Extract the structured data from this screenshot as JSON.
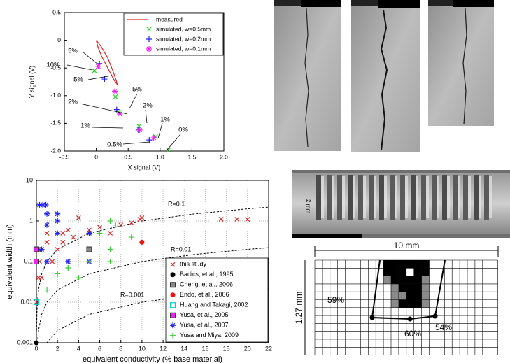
{
  "chart_data": [
    {
      "type": "scatter",
      "xlabel": "X signal (V)",
      "ylabel": "Y signal (V)",
      "xlim": [
        -0.5,
        2.0
      ],
      "ylim": [
        -2.0,
        0.5
      ],
      "xticks": [
        -0.5,
        0,
        0.5,
        {
          "value": 1,
          "label": "1.0"
        },
        1.5,
        {
          "value": 2,
          "label": "2.0"
        }
      ],
      "yticks": [
        0.5,
        0,
        -0.5,
        {
          "value": -1,
          "label": "-1.0"
        },
        -1.5,
        {
          "value": -2,
          "label": "-2.0"
        }
      ],
      "grid": false,
      "log_y": false,
      "legend": "upper right",
      "series": [
        {
          "name": "measured",
          "color": "#e02020",
          "marker": "line",
          "x": [
            0,
            0.08,
            0.18,
            0.26,
            0.31,
            0.33,
            0.28,
            0.18,
            0.08,
            0.02,
            0
          ],
          "values": [
            0,
            -0.12,
            -0.32,
            -0.55,
            -0.72,
            -0.8,
            -0.72,
            -0.5,
            -0.28,
            -0.1,
            0
          ]
        },
        {
          "name": "simulated, w=0.5mm",
          "color": "#22cc22",
          "marker": "x",
          "x": [
            -0.03,
            0.3,
            0.36,
            0.67,
            0.93,
            1.13
          ],
          "values": [
            -0.55,
            -1.02,
            -1.3,
            -1.55,
            -1.74,
            -1.98
          ]
        },
        {
          "name": "simulated, w=0.2mm",
          "color": "#2222ee",
          "marker": "+",
          "x": [
            0.05,
            0.13,
            0.32,
            0.66,
            0.83
          ],
          "values": [
            -0.42,
            -0.7,
            -1.25,
            -1.62,
            -1.8
          ]
        },
        {
          "name": "simulated, w=0.1mm",
          "color": "#ee22ee",
          "marker": "*",
          "x": [
            0.03,
            0.29,
            0.37,
            0.68,
            0.9
          ],
          "values": [
            -0.47,
            -0.92,
            -1.33,
            -1.62,
            -1.76
          ]
        }
      ],
      "annotations": [
        "5%",
        "10%",
        "5%",
        "5%",
        "2%",
        "1%",
        "2%",
        "1%",
        "0.5%",
        "0%"
      ]
    },
    {
      "type": "scatter",
      "xlabel": "equivalent conductivity (% base material)",
      "ylabel": "equivalent width (mm)",
      "xlim": [
        0,
        22
      ],
      "ylim": [
        0.001,
        10
      ],
      "xticks": [
        0,
        2,
        4,
        6,
        8,
        10,
        12,
        14,
        16,
        18,
        20,
        22
      ],
      "yticks": [
        0.001,
        0.01,
        0.1,
        1,
        10
      ],
      "grid": true,
      "log_y": true,
      "legend": "lower right",
      "series": [
        {
          "name": "this study",
          "color": "#e02020",
          "marker": "x",
          "x": [
            0,
            0.2,
            0.2,
            0.3,
            0.5,
            0.5,
            1,
            1,
            1.5,
            2,
            2.5,
            2.5,
            3,
            3.5,
            4,
            5,
            6,
            7,
            8,
            9,
            9.8,
            10,
            17.5,
            19,
            20
          ],
          "values": [
            0.01,
            0.04,
            0.2,
            0.1,
            0.2,
            0.04,
            0.3,
            0.5,
            0.1,
            0.2,
            0.5,
            0.3,
            0.6,
            0.4,
            1.2,
            0.6,
            0.7,
            0.5,
            0.8,
            0.9,
            1.1,
            1.2,
            1.1,
            1.1,
            1.1
          ]
        },
        {
          "name": "Badics, et al., 1995",
          "color": "#000000",
          "marker": "o",
          "x": [
            0
          ],
          "values": [
            0.001
          ]
        },
        {
          "name": "Cheng, et al., 2006",
          "color": "#888888",
          "marker": "s",
          "x": [
            5
          ],
          "values": [
            0.2
          ]
        },
        {
          "name": "Endo, et al., 2006",
          "color": "#ee1111",
          "marker": "o",
          "x": [
            10
          ],
          "values": [
            0.3
          ]
        },
        {
          "name": "Huang and Takagi, 2002",
          "color": "#00cccc",
          "marker": "S",
          "x": [
            0,
            0,
            0
          ],
          "values": [
            0.2,
            0.1,
            0.01
          ]
        },
        {
          "name": "Yusa, et al., 2005",
          "color": "#ee22ee",
          "marker": "s",
          "x": [
            0,
            0
          ],
          "values": [
            0.2,
            0.1
          ]
        },
        {
          "name": "Yusa, et al., 2007",
          "color": "#2222ee",
          "marker": "*",
          "x": [
            0.3,
            0.6,
            0.9,
            1,
            2,
            1,
            2,
            2,
            5,
            0.5,
            1,
            3,
            5
          ],
          "values": [
            2.5,
            2.5,
            2.5,
            1.5,
            1.5,
            0.8,
            0.5,
            1,
            0.5,
            0.2,
            0.1,
            0.1,
            0.1
          ]
        },
        {
          "name": "Yusa and Miya, 2009",
          "color": "#33cc33",
          "marker": "+",
          "x": [
            7,
            7.5,
            9,
            7,
            5,
            3,
            1,
            2,
            4,
            7,
            6
          ],
          "values": [
            1,
            0.8,
            0.4,
            0.2,
            0.1,
            0.07,
            0.02,
            0.05,
            0.04,
            0.1,
            0.5
          ]
        }
      ],
      "reference_curves": [
        {
          "label": "R=0.1",
          "x": [
            0.02,
            0.05,
            0.1,
            0.2,
            0.5,
            1,
            2,
            5,
            10,
            15,
            20,
            22
          ],
          "values": [
            0.002,
            0.005,
            0.01,
            0.02,
            0.05,
            0.1,
            0.2,
            0.5,
            1,
            1.5,
            2,
            2.2
          ]
        },
        {
          "label": "R=0.01",
          "x": [
            0.1,
            0.2,
            0.5,
            1,
            2,
            5,
            10,
            15,
            20,
            22
          ],
          "values": [
            0.001,
            0.002,
            0.005,
            0.01,
            0.02,
            0.05,
            0.1,
            0.15,
            0.2,
            0.22
          ]
        },
        {
          "label": "R=0.001",
          "x": [
            1,
            2,
            5,
            10,
            15,
            20,
            22
          ],
          "values": [
            0.001,
            0.002,
            0.005,
            0.01,
            0.015,
            0.02,
            0.022
          ]
        }
      ]
    }
  ],
  "figure_labels": {
    "scale_bar": "2 mm",
    "width_dimension": "10 mm",
    "depth_dimension": "1.27 mm",
    "percent_labels": [
      "59%",
      "60%",
      "54%"
    ]
  }
}
